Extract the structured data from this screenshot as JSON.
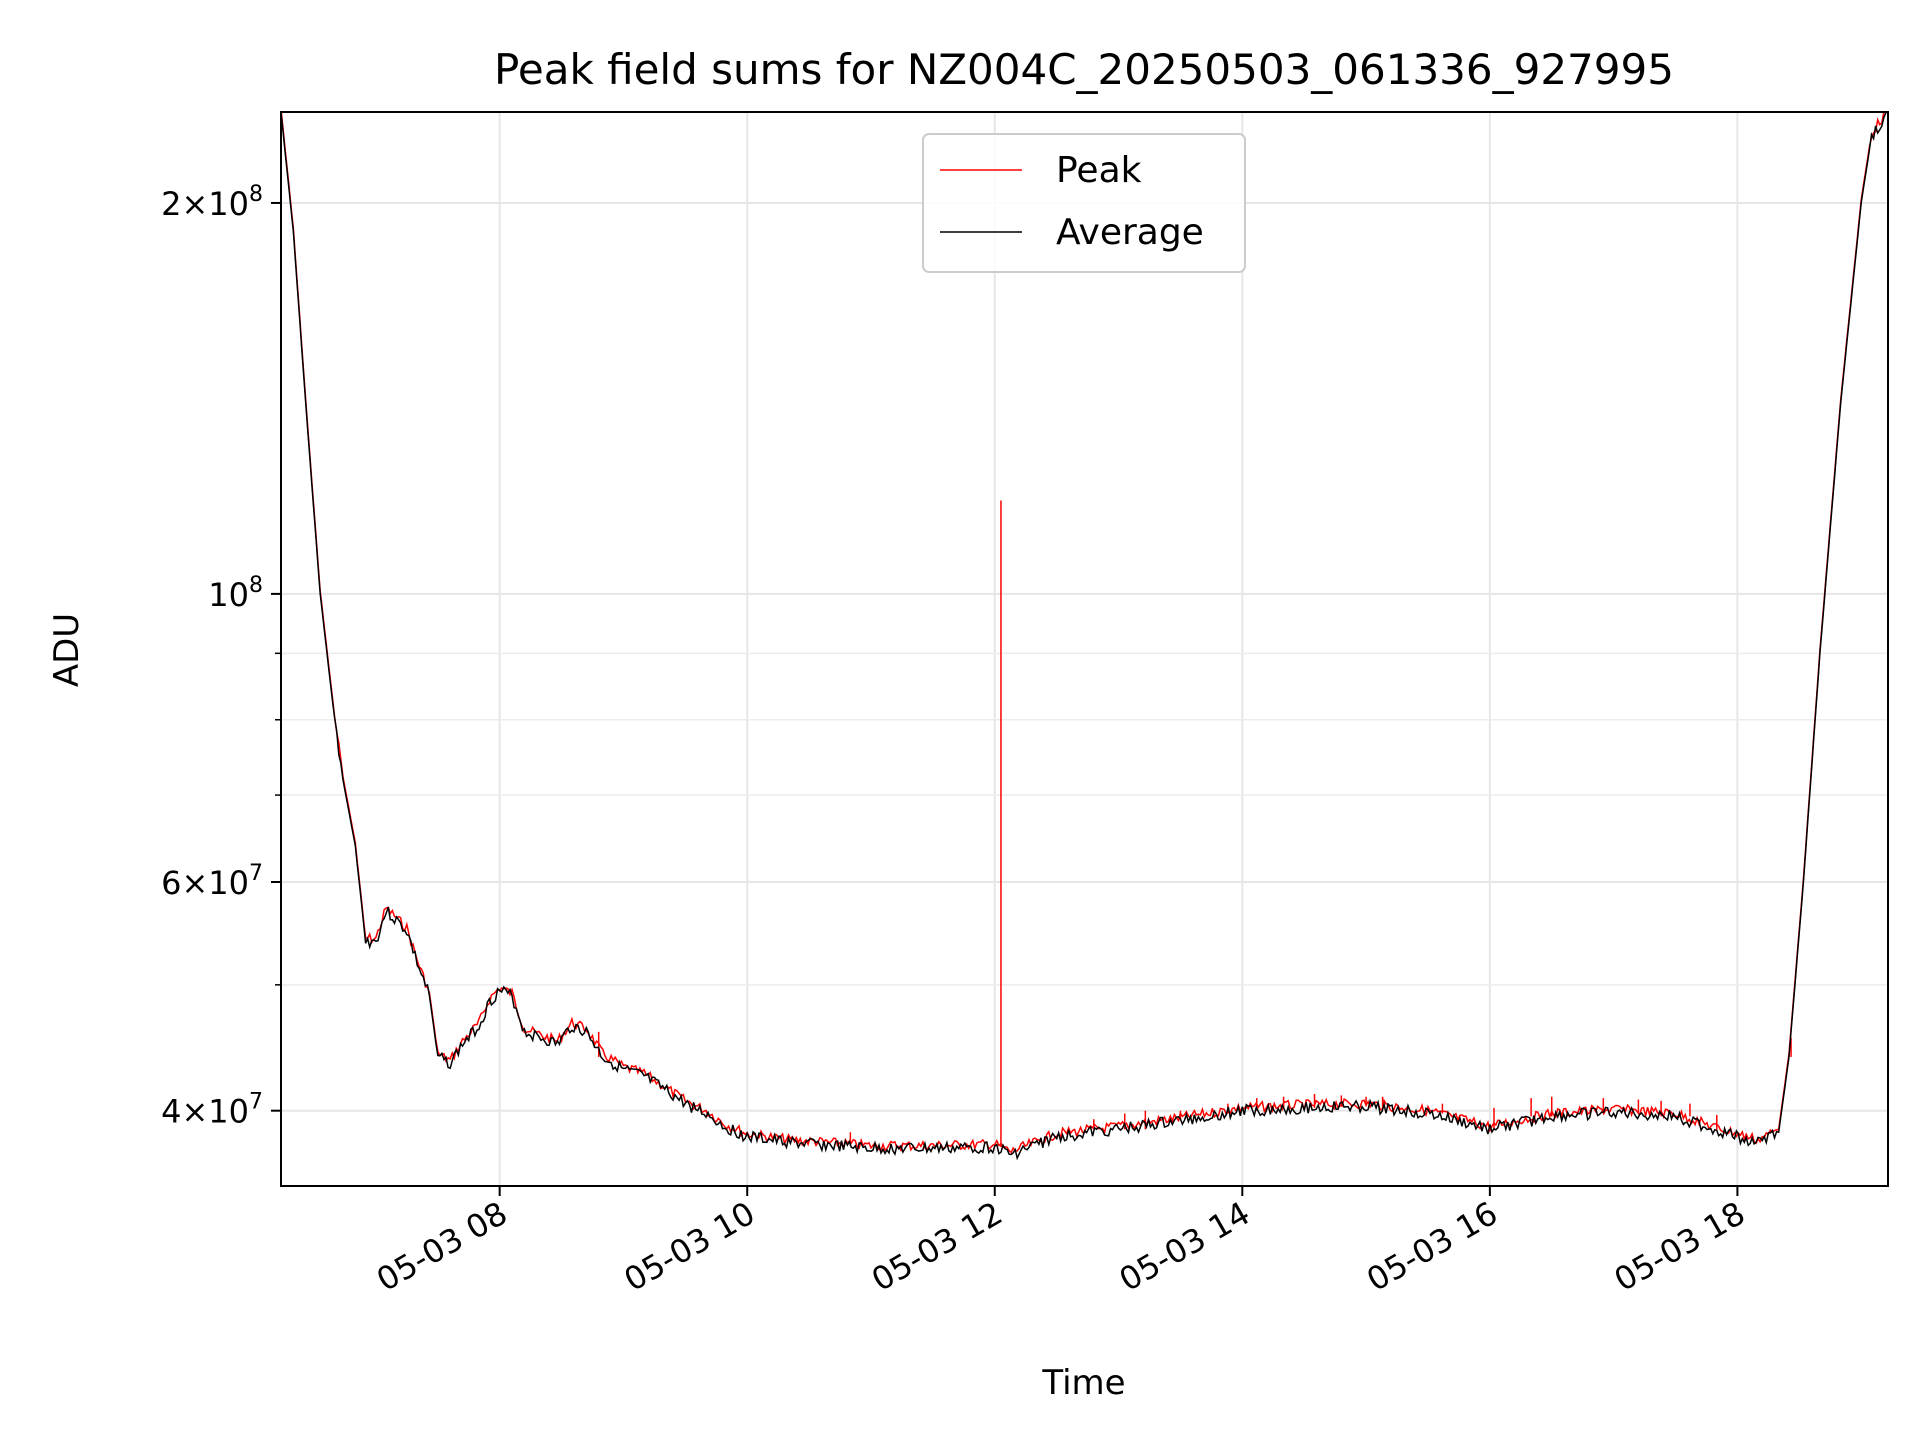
{
  "chart_data": {
    "type": "line",
    "title": "Peak field sums for NZ004C_20250503_061336_927995",
    "xlabel": "Time",
    "ylabel": "ADU",
    "y_scale": "log",
    "ylim": [
      35000000,
      235000000
    ],
    "xlim": [
      "2025-05-03 06:14",
      "2025-05-03 19:13"
    ],
    "grid": true,
    "legend_position": "upper center",
    "x_ticks": [
      {
        "t": "2025-05-03 08:00",
        "label": "05-03 08"
      },
      {
        "t": "2025-05-03 10:00",
        "label": "05-03 10"
      },
      {
        "t": "2025-05-03 12:00",
        "label": "05-03 12"
      },
      {
        "t": "2025-05-03 14:00",
        "label": "05-03 14"
      },
      {
        "t": "2025-05-03 16:00",
        "label": "05-03 16"
      },
      {
        "t": "2025-05-03 18:00",
        "label": "05-03 18"
      }
    ],
    "y_ticks": [
      {
        "v": 40000000,
        "mant": "4",
        "exp": "7"
      },
      {
        "v": 60000000,
        "mant": "6",
        "exp": "7"
      },
      {
        "v": 100000000,
        "mant": "",
        "exp": "8"
      },
      {
        "v": 200000000,
        "mant": "2",
        "exp": "8"
      }
    ],
    "y_minor_ticks": [
      50000000,
      70000000,
      80000000,
      90000000
    ],
    "series": [
      {
        "name": "Average",
        "color": "#000000",
        "points": [
          [
            "2025-05-03 06:14",
            235000000
          ],
          [
            "2025-05-03 06:20",
            190000000
          ],
          [
            "2025-05-03 06:26",
            140000000
          ],
          [
            "2025-05-03 06:33",
            100000000
          ],
          [
            "2025-05-03 06:40",
            80000000
          ],
          [
            "2025-05-03 06:44",
            72000000
          ],
          [
            "2025-05-03 06:50",
            64000000
          ],
          [
            "2025-05-03 06:55",
            54000000
          ],
          [
            "2025-05-03 07:00",
            54000000
          ],
          [
            "2025-05-03 07:05",
            57000000
          ],
          [
            "2025-05-03 07:10",
            56000000
          ],
          [
            "2025-05-03 07:15",
            55000000
          ],
          [
            "2025-05-03 07:20",
            52000000
          ],
          [
            "2025-05-03 07:26",
            49000000
          ],
          [
            "2025-05-03 07:30",
            44000000
          ],
          [
            "2025-05-03 07:36",
            43500000
          ],
          [
            "2025-05-03 07:42",
            45000000
          ],
          [
            "2025-05-03 07:50",
            46500000
          ],
          [
            "2025-05-03 07:55",
            48500000
          ],
          [
            "2025-05-03 08:00",
            49500000
          ],
          [
            "2025-05-03 08:06",
            49000000
          ],
          [
            "2025-05-03 08:12",
            46000000
          ],
          [
            "2025-05-03 08:20",
            45500000
          ],
          [
            "2025-05-03 08:28",
            45000000
          ],
          [
            "2025-05-03 08:35",
            46500000
          ],
          [
            "2025-05-03 08:42",
            46000000
          ],
          [
            "2025-05-03 08:50",
            44000000
          ],
          [
            "2025-05-03 09:00",
            43000000
          ],
          [
            "2025-05-03 09:10",
            42500000
          ],
          [
            "2025-05-03 09:20",
            41500000
          ],
          [
            "2025-05-03 09:30",
            40500000
          ],
          [
            "2025-05-03 09:40",
            39800000
          ],
          [
            "2025-05-03 09:50",
            38800000
          ],
          [
            "2025-05-03 10:00",
            38200000
          ],
          [
            "2025-05-03 10:20",
            37800000
          ],
          [
            "2025-05-03 10:40",
            37600000
          ],
          [
            "2025-05-03 11:00",
            37400000
          ],
          [
            "2025-05-03 11:30",
            37400000
          ],
          [
            "2025-05-03 12:00",
            37500000
          ],
          [
            "2025-05-03 12:08",
            37000000
          ],
          [
            "2025-05-03 12:30",
            38200000
          ],
          [
            "2025-05-03 13:00",
            38700000
          ],
          [
            "2025-05-03 13:30",
            39300000
          ],
          [
            "2025-05-03 14:00",
            40000000
          ],
          [
            "2025-05-03 14:30",
            40200000
          ],
          [
            "2025-05-03 15:00",
            40300000
          ],
          [
            "2025-05-03 15:30",
            39800000
          ],
          [
            "2025-05-03 16:00",
            38700000
          ],
          [
            "2025-05-03 16:30",
            39600000
          ],
          [
            "2025-05-03 17:00",
            39900000
          ],
          [
            "2025-05-03 17:30",
            39600000
          ],
          [
            "2025-05-03 17:50",
            38600000
          ],
          [
            "2025-05-03 18:10",
            37800000
          ],
          [
            "2025-05-03 18:20",
            38500000
          ],
          [
            "2025-05-03 18:25",
            44000000
          ],
          [
            "2025-05-03 18:32",
            60000000
          ],
          [
            "2025-05-03 18:40",
            90000000
          ],
          [
            "2025-05-03 18:50",
            140000000
          ],
          [
            "2025-05-03 19:00",
            200000000
          ],
          [
            "2025-05-03 19:05",
            225000000
          ],
          [
            "2025-05-03 19:13",
            235000000
          ]
        ]
      },
      {
        "name": "Peak",
        "color": "#ff0000",
        "spikes": [
          [
            "2025-05-03 08:48",
            46000000
          ],
          [
            "2025-05-03 10:50",
            38500000
          ],
          [
            "2025-05-03 12:03",
            118000000
          ],
          [
            "2025-05-03 12:48",
            39400000
          ],
          [
            "2025-05-03 13:03",
            39800000
          ],
          [
            "2025-05-03 13:13",
            40000000
          ],
          [
            "2025-05-03 13:30",
            40000000
          ],
          [
            "2025-05-03 13:53",
            40500000
          ],
          [
            "2025-05-03 14:07",
            40900000
          ],
          [
            "2025-05-03 14:20",
            41000000
          ],
          [
            "2025-05-03 14:35",
            41200000
          ],
          [
            "2025-05-03 14:48",
            41100000
          ],
          [
            "2025-05-03 15:00",
            41000000
          ],
          [
            "2025-05-03 15:08",
            41000000
          ],
          [
            "2025-05-03 15:37",
            40500000
          ],
          [
            "2025-05-03 16:02",
            40200000
          ],
          [
            "2025-05-03 16:20",
            40900000
          ],
          [
            "2025-05-03 16:30",
            41000000
          ],
          [
            "2025-05-03 16:55",
            40900000
          ],
          [
            "2025-05-03 17:12",
            40800000
          ],
          [
            "2025-05-03 17:23",
            40700000
          ],
          [
            "2025-05-03 17:37",
            40500000
          ],
          [
            "2025-05-03 17:50",
            39700000
          ],
          [
            "2025-05-03 18:26",
            45500000
          ]
        ]
      }
    ]
  }
}
